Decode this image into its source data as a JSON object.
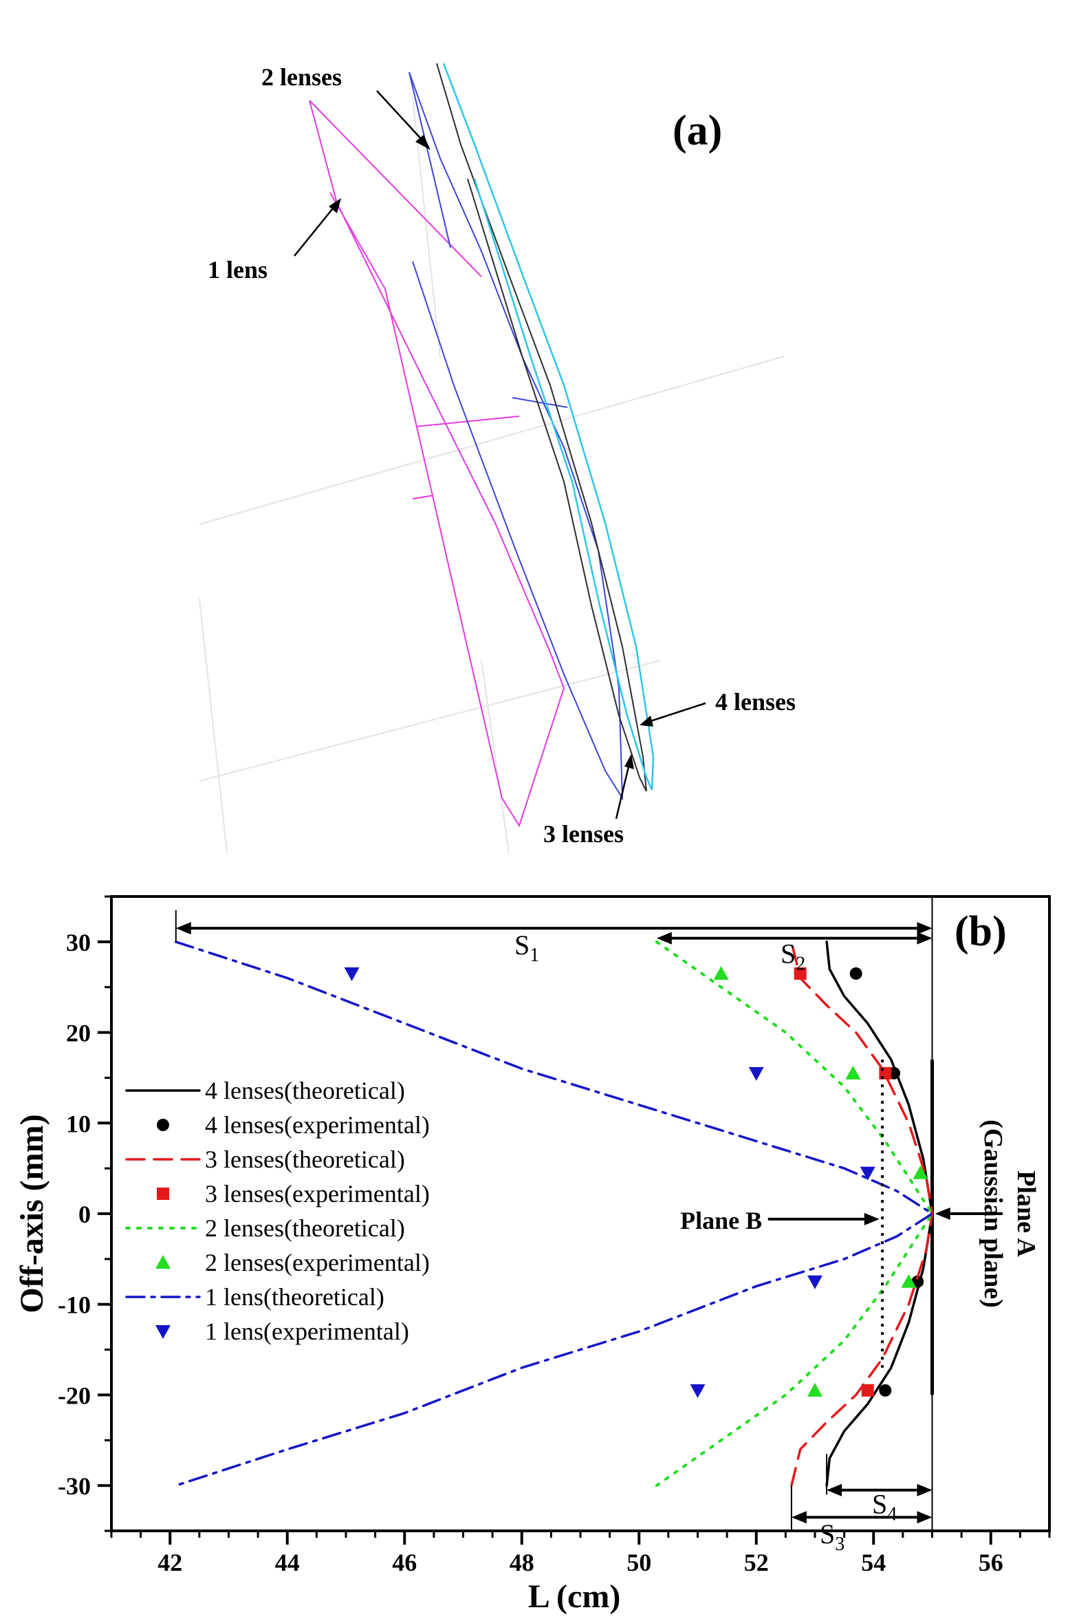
{
  "panel_a": {
    "label": "(a)",
    "annotations": [
      "2 lenses",
      "1 lens",
      "4 lenses",
      "3 lenses"
    ],
    "colors": {
      "1 lens": "#e23be0",
      "2 lenses": "#3a46d6",
      "3 lenses": "#2d2d2d",
      "4 lenses": "#2fc6e6"
    }
  },
  "chart_data": {
    "type": "line",
    "panel_label": "(b)",
    "xlabel": "L (cm)",
    "ylabel": "Off-axis (mm)",
    "xlim": [
      41,
      57
    ],
    "ylim": [
      -35,
      35
    ],
    "xticks": [
      42,
      44,
      46,
      48,
      50,
      52,
      54,
      56
    ],
    "yticks": [
      -30,
      -20,
      -10,
      0,
      10,
      20,
      30
    ],
    "legend_position": "middle-left",
    "series": [
      {
        "name": "4 lenses(theoretical)",
        "style": "solid",
        "color": "#000000",
        "points": [
          [
            53.2,
            -30
          ],
          [
            53.25,
            -27
          ],
          [
            53.5,
            -24
          ],
          [
            53.9,
            -21
          ],
          [
            54.3,
            -17
          ],
          [
            54.6,
            -12
          ],
          [
            54.85,
            -6
          ],
          [
            55,
            0
          ],
          [
            54.85,
            6
          ],
          [
            54.6,
            12
          ],
          [
            54.3,
            17
          ],
          [
            53.9,
            21
          ],
          [
            53.5,
            24
          ],
          [
            53.25,
            27
          ],
          [
            53.2,
            30
          ]
        ]
      },
      {
        "name": "4 lenses(experimental)",
        "marker": "circle",
        "color": "#000000",
        "points": [
          [
            53.7,
            26.5
          ],
          [
            54.35,
            15.5
          ],
          [
            54.75,
            -7.5
          ],
          [
            54.2,
            -19.5
          ]
        ]
      },
      {
        "name": "3 lenses(theoretical)",
        "style": "dashed",
        "color": "#e31a1c",
        "points": [
          [
            52.6,
            -30
          ],
          [
            52.75,
            -26
          ],
          [
            53.2,
            -23
          ],
          [
            53.7,
            -20
          ],
          [
            54.15,
            -16
          ],
          [
            54.6,
            -10
          ],
          [
            54.9,
            -4
          ],
          [
            55,
            0
          ],
          [
            54.9,
            4
          ],
          [
            54.6,
            10
          ],
          [
            54.15,
            16
          ],
          [
            53.7,
            20
          ],
          [
            53.2,
            23
          ],
          [
            52.75,
            26
          ],
          [
            52.6,
            30
          ]
        ]
      },
      {
        "name": "3 lenses(experimental)",
        "marker": "square",
        "color": "#e31a1c",
        "points": [
          [
            52.75,
            26.5
          ],
          [
            54.2,
            15.5
          ],
          [
            53.9,
            -19.5
          ]
        ]
      },
      {
        "name": "2 lenses(theoretical)",
        "style": "dotted",
        "color": "#22dd22",
        "points": [
          [
            50.3,
            30
          ],
          [
            51.4,
            25
          ],
          [
            52.5,
            20
          ],
          [
            53.5,
            14
          ],
          [
            54.2,
            8
          ],
          [
            54.7,
            3
          ],
          [
            55,
            0
          ],
          [
            54.7,
            -3
          ],
          [
            54.2,
            -8
          ],
          [
            53.5,
            -14
          ],
          [
            52.5,
            -20
          ],
          [
            51.4,
            -25
          ],
          [
            50.3,
            -30
          ]
        ]
      },
      {
        "name": "2 lenses(experimental)",
        "marker": "triangle-up",
        "color": "#22dd22",
        "points": [
          [
            51.4,
            26.5
          ],
          [
            53.65,
            15.5
          ],
          [
            54.8,
            4.5
          ],
          [
            54.6,
            -7.5
          ],
          [
            53,
            -19.5
          ]
        ]
      },
      {
        "name": "1 lens(theoretical)",
        "style": "dash-dot",
        "color": "#1515c8",
        "points": [
          [
            42.1,
            30
          ],
          [
            44,
            26
          ],
          [
            46,
            21
          ],
          [
            48,
            16
          ],
          [
            50,
            12
          ],
          [
            52,
            8
          ],
          [
            53.5,
            5
          ],
          [
            54.4,
            2.5
          ],
          [
            55,
            0
          ],
          [
            54.4,
            -2.5
          ],
          [
            53.5,
            -5
          ],
          [
            52,
            -8
          ],
          [
            50,
            -13
          ],
          [
            48,
            -17
          ],
          [
            46,
            -22
          ],
          [
            44,
            -26
          ],
          [
            42.1,
            -30
          ]
        ]
      },
      {
        "name": "1 lens(experimental)",
        "marker": "triangle-down",
        "color": "#1515c8",
        "points": [
          [
            45.1,
            26.5
          ],
          [
            52,
            15.5
          ],
          [
            53.9,
            4.5
          ],
          [
            53,
            -7.5
          ],
          [
            51,
            -19.5
          ]
        ]
      }
    ],
    "annotations": {
      "S1": "S",
      "S1_sub": "1",
      "S2": "S",
      "S2_sub": "2",
      "S3": "S",
      "S3_sub": "3",
      "S4": "S",
      "S4_sub": "4",
      "plane_b": "Plane B",
      "plane_a_line1": "Plane A",
      "plane_a_line2": "(Gaussian plane)"
    }
  }
}
